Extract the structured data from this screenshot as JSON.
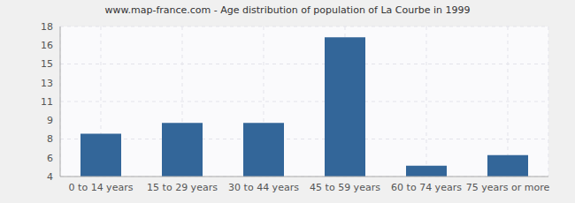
{
  "chart_data": {
    "type": "bar",
    "title": "www.map-france.com - Age distribution of population of La Courbe in 1999",
    "categories": [
      "0 to 14 years",
      "15 to 29 years",
      "30 to 44 years",
      "45 to 59 years",
      "60 to 74 years",
      "75 years or more"
    ],
    "values": [
      8,
      9,
      9,
      17,
      5,
      6
    ],
    "color": "#336699",
    "ylim": [
      4,
      18
    ],
    "yticks": [
      4,
      {
        "value": 5.75,
        "label": "6"
      },
      {
        "value": 7.5,
        "label": "8"
      },
      {
        "value": 9.25,
        "label": "9"
      },
      11,
      {
        "value": 12.75,
        "label": "13"
      },
      {
        "value": 14.5,
        "label": "15"
      },
      {
        "value": 16.25,
        "label": "16"
      },
      18
    ],
    "grid": true
  }
}
